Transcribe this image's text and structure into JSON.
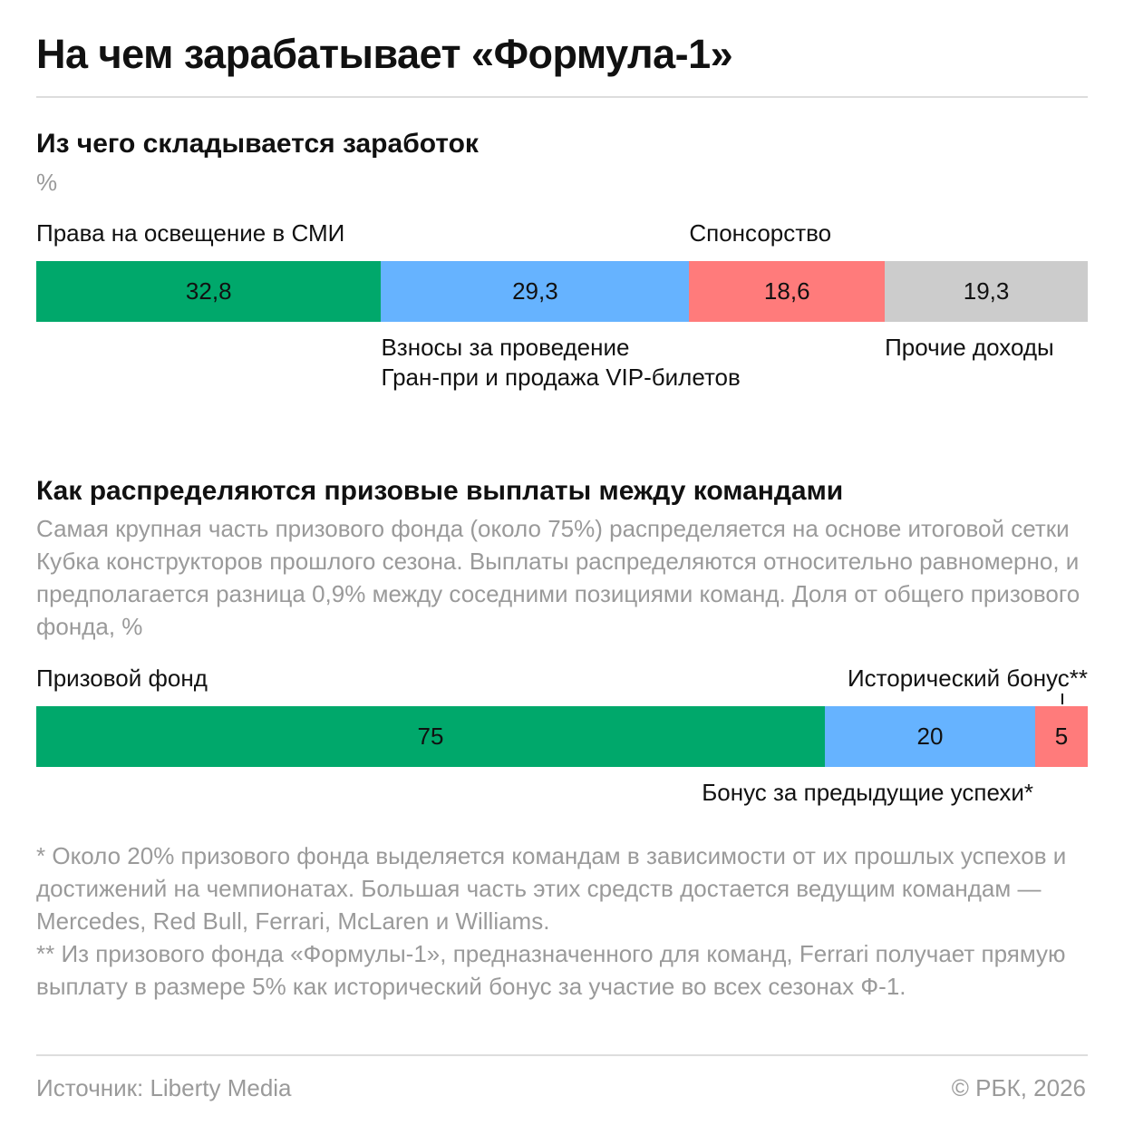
{
  "title": "На чем зарабатывает «Формула-1»",
  "chart_data": [
    {
      "type": "stacked-bar",
      "title": "Из чего складывается заработок",
      "subtitle": "%",
      "series": [
        {
          "name": "Права на освещение в СМИ",
          "color": "#00a86b",
          "values": [
            32.8
          ],
          "value_labels": [
            "32,8"
          ]
        },
        {
          "name": "Взносы за проведение\nГран-при и продажа VIP-билетов",
          "color": "#66b3ff",
          "values": [
            29.3
          ],
          "value_labels": [
            "29,3"
          ]
        },
        {
          "name": "Спонсорство",
          "color": "#ff7b7b",
          "values": [
            18.6
          ],
          "value_labels": [
            "18,6"
          ]
        },
        {
          "name": "Прочие доходы",
          "color": "#cccccc",
          "values": [
            19.3
          ],
          "value_labels": [
            "19,3"
          ]
        }
      ]
    },
    {
      "type": "stacked-bar",
      "title": "Как распределяются призовые выплаты между командами",
      "subtitle": "Самая крупная часть призового фонда (около 75%) распределяется на основе итоговой сетки Кубка конструкторов прошлого сезона. Выплаты распределяются относительно равномерно, и предполагается разница 0,9% между соседними позициями команд. Доля от общего призового фонда, %",
      "series": [
        {
          "name": "Призовой фонд",
          "color": "#00a86b",
          "values": [
            75
          ]
        },
        {
          "name": "Бонус за предыдущие успехи*",
          "color": "#66b3ff",
          "values": [
            20
          ]
        },
        {
          "name": "Исторический бонус**",
          "color": "#ff7b7b",
          "values": [
            5
          ]
        }
      ]
    }
  ],
  "footnotes": [
    "* Около 20% призового фонда выделяется командам в зависимости от их прошлых успехов и достижений на чемпионатах. Большая часть этих средств достается ведущим командам — Mercedes, Red Bull, Ferrari, McLaren и Williams.",
    "** Из призового фонда «Формулы-1», предназначенного для команд, Ferrari получает прямую выплату в размере 5% как исторический бонус за участие во всех сезонах Ф-1."
  ],
  "source": "Источник: Liberty Media",
  "copyright": "© РБК, 2026"
}
